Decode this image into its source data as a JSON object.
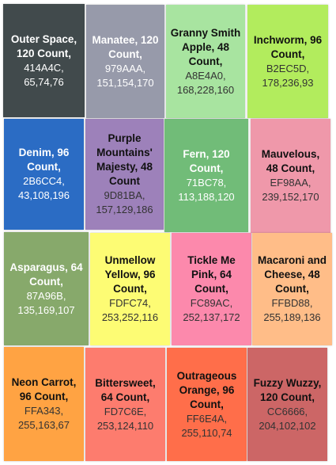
{
  "swatches": [
    {
      "name": "Outer Space, 120 Count,",
      "hex": "414A4C,",
      "rgb": "65,74,76",
      "color": "#414A4C",
      "text": "light"
    },
    {
      "name": "Manatee, 120 Count,",
      "hex": "979AAA,",
      "rgb": "151,154,170",
      "color": "#979AAA",
      "text": "light"
    },
    {
      "name": "Granny Smith Apple, 48 Count,",
      "hex": "A8E4A0,",
      "rgb": "168,228,160",
      "color": "#A8E4A0",
      "text": "dark"
    },
    {
      "name": "Inchworm, 96 Count,",
      "hex": "B2EC5D,",
      "rgb": "178,236,93",
      "color": "#B2EC5D",
      "text": "dark"
    },
    {
      "name": "Denim, 96 Count,",
      "hex": "2B6CC4,",
      "rgb": "43,108,196",
      "color": "#2B6CC4",
      "text": "light"
    },
    {
      "name": "Purple Mountains' Majesty, 48 Count",
      "hex": "9D81BA,",
      "rgb": "157,129,186",
      "color": "#9D81BA",
      "text": "dark"
    },
    {
      "name": "Fern, 120 Count,",
      "hex": "71BC78,",
      "rgb": "113,188,120",
      "color": "#71BC78",
      "text": "light"
    },
    {
      "name": "Mauvelous, 48 Count,",
      "hex": "EF98AA,",
      "rgb": "239,152,170",
      "color": "#EF98AA",
      "text": "dark"
    },
    {
      "name": "Asparagus, 64 Count,",
      "hex": "87A96B,",
      "rgb": "135,169,107",
      "color": "#87A96B",
      "text": "light"
    },
    {
      "name": "Unmellow Yellow, 96 Count,",
      "hex": "FDFC74,",
      "rgb": "253,252,116",
      "color": "#FDFC74",
      "text": "dark"
    },
    {
      "name": "Tickle Me Pink, 64 Count,",
      "hex": "FC89AC,",
      "rgb": "252,137,172",
      "color": "#FC89AC",
      "text": "dark"
    },
    {
      "name": "Macaroni and Cheese, 48 Count,",
      "hex": "FFBD88,",
      "rgb": "255,189,136",
      "color": "#FFBD88",
      "text": "dark"
    },
    {
      "name": "Neon Carrot, 96 Count,",
      "hex": "FFA343,",
      "rgb": "255,163,67",
      "color": "#FFA343",
      "text": "dark"
    },
    {
      "name": "Bittersweet, 64 Count,",
      "hex": "FD7C6E,",
      "rgb": "253,124,110",
      "color": "#FD7C6E",
      "text": "dark"
    },
    {
      "name": "Outrageous Orange, 96 Count,",
      "hex": "FF6E4A,",
      "rgb": "255,110,74",
      "color": "#FF6E4A",
      "text": "dark"
    },
    {
      "name": "Fuzzy Wuzzy, 120 Count,",
      "hex": "CC6666,",
      "rgb": "204,102,102",
      "color": "#CC6666",
      "text": "dark"
    }
  ]
}
